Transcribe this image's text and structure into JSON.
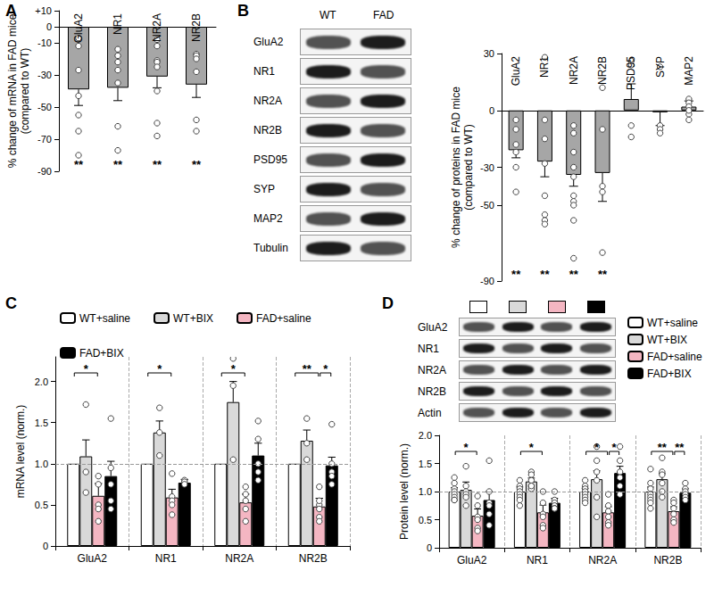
{
  "chart_data": [
    {
      "panel": "A",
      "type": "bar",
      "y_label": "% change of mRNA in FAD mice\n(compared to WT)",
      "categories": [
        "GluA2",
        "NR1",
        "NR2A",
        "NR2B"
      ],
      "values": [
        -39,
        -38,
        -31,
        -36
      ],
      "errors": [
        10,
        8,
        7,
        8
      ],
      "points": [
        [
          -7,
          -12,
          -27,
          -43,
          -55,
          -65,
          -80
        ],
        [
          -14,
          -18,
          -22,
          -27,
          -35,
          -62,
          -77
        ],
        [
          -8,
          -12,
          -21,
          -22,
          -25,
          -40,
          -60,
          -68
        ],
        [
          -17,
          -18,
          -20,
          -28,
          -58,
          -65
        ]
      ],
      "significance": [
        "**",
        "**",
        "**",
        "**"
      ],
      "color": "#a6a6a6",
      "ylim": [
        -90,
        10
      ],
      "yticks": [
        {
          "value": 10,
          "label": "+10"
        },
        0,
        -10,
        -30,
        -50,
        -70,
        -90
      ]
    },
    {
      "panel": "B",
      "type": "bar",
      "y_label": "% change of proteins in FAD mice\n(compared to WT)",
      "categories": [
        "GluA2",
        "NR1",
        "NR2A",
        "NR2B",
        "PSD95",
        "SYP",
        "MAP2"
      ],
      "values": [
        -21,
        -27,
        -34,
        -33,
        6,
        -1,
        2
      ],
      "errors": [
        4,
        8,
        6,
        15,
        8,
        7,
        3
      ],
      "points": [
        [
          -5,
          -10,
          -18,
          -22,
          -30,
          -43
        ],
        [
          28,
          -5,
          -15,
          -28,
          -45,
          -55,
          -58,
          -60
        ],
        [
          -8,
          -12,
          -22,
          -30,
          -35,
          -45,
          -48,
          -50,
          -58,
          -78
        ],
        [
          12,
          -10,
          -40,
          -43,
          -75
        ],
        [
          26,
          24,
          -8,
          -14
        ],
        [
          23,
          -8,
          -10,
          -12
        ],
        [
          6,
          4,
          2,
          -2,
          -5,
          0
        ]
      ],
      "significance": [
        "**",
        "**",
        "**",
        "**",
        null,
        null,
        null
      ],
      "color": "#a6a6a6",
      "ylim": [
        -90,
        30
      ],
      "yticks": [
        30,
        0,
        -30,
        -50,
        -90
      ]
    },
    {
      "panel": "C",
      "type": "bar",
      "y_label": "mRNA level (norm.)",
      "categories": [
        "GluA2",
        "NR1",
        "NR2A",
        "NR2B"
      ],
      "series": [
        {
          "name": "WT+saline",
          "color": "#ffffff",
          "values": [
            1,
            1,
            1,
            1
          ],
          "errors": [
            null,
            null,
            null,
            null
          ],
          "points": [
            [],
            [],
            [],
            []
          ]
        },
        {
          "name": "WT+BIX",
          "color": "#d9d9d9",
          "values": [
            1.09,
            1.38,
            1.75,
            1.28
          ],
          "errors": [
            0.2,
            0.14,
            0.25,
            0.13
          ],
          "points": [
            [
              1.72,
              0.9,
              0.65
            ],
            [
              1.68,
              1.38,
              1.1
            ],
            [
              2.28,
              1.95,
              1.05
            ],
            [
              1.55,
              1.25,
              1.05
            ]
          ]
        },
        {
          "name": "FAD+saline",
          "color": "#f4b6c2",
          "values": [
            0.61,
            0.59,
            0.53,
            0.48
          ],
          "errors": [
            0.15,
            0.1,
            0.1,
            0.1
          ],
          "points": [
            [
              0.85,
              0.75,
              0.5,
              0.45,
              0.3
            ],
            [
              0.88,
              0.6,
              0.55,
              0.5,
              0.38
            ],
            [
              0.72,
              0.63,
              0.55,
              0.45,
              0.3
            ],
            [
              0.72,
              0.5,
              0.45,
              0.35,
              0.3,
              0.55
            ]
          ]
        },
        {
          "name": "FAD+BIX",
          "color": "#000000",
          "values": [
            0.85,
            0.77,
            1.1,
            0.98
          ],
          "errors": [
            0.18,
            0.04,
            0.15,
            0.1
          ],
          "points": [
            [
              1.55,
              0.95,
              0.75,
              0.55,
              0.45
            ],
            [
              0.8,
              0.78,
              0.75
            ],
            [
              1.52,
              1.3,
              1.0,
              0.9,
              0.8
            ],
            [
              1.48,
              1.0,
              0.9,
              0.85,
              0.75
            ]
          ]
        }
      ],
      "comparisons": [
        {
          "category": "GluA2",
          "from": "WT+saline",
          "to": "FAD+saline",
          "label": "*"
        },
        {
          "category": "NR1",
          "from": "WT+saline",
          "to": "FAD+saline",
          "label": "*"
        },
        {
          "category": "NR2A",
          "from": "WT+saline",
          "to": "FAD+saline",
          "label": "*"
        },
        {
          "category": "NR2B",
          "from": "WT+saline",
          "to": "FAD+saline",
          "label": "**"
        },
        {
          "category": "NR2B",
          "from": "FAD+saline",
          "to": "FAD+BIX",
          "label": "*"
        }
      ],
      "reference_line": 1,
      "legend": "top",
      "ylim": [
        0,
        2.3
      ],
      "yticks": [
        0,
        0.5,
        {
          "value": 1,
          "label": "1.0"
        },
        1.5,
        {
          "value": 2,
          "label": "2.0"
        }
      ]
    },
    {
      "panel": "D",
      "type": "bar",
      "y_label": "Protein level (norm.)",
      "categories": [
        "GluA2",
        "NR1",
        "NR2A",
        "NR2B"
      ],
      "series": [
        {
          "name": "WT+saline",
          "color": "#ffffff",
          "values": [
            1.0,
            1.0,
            1.0,
            1.0
          ],
          "errors": [
            0.07,
            0.08,
            0.06,
            0.08
          ],
          "points": [
            [
              1.25,
              1.15,
              1.05,
              1.0,
              0.95,
              0.9,
              0.85,
              0.85
            ],
            [
              1.2,
              1.1,
              1.05,
              1.0,
              0.95,
              0.9,
              0.85,
              0.75
            ],
            [
              1.2,
              1.1,
              1.05,
              1.0,
              0.95,
              0.9,
              0.85,
              0.8
            ],
            [
              1.4,
              1.15,
              1.05,
              0.95,
              0.9,
              0.85,
              0.8,
              0.7
            ]
          ]
        },
        {
          "name": "WT+BIX",
          "color": "#d9d9d9",
          "values": [
            1.03,
            1.18,
            1.22,
            1.22
          ],
          "errors": [
            0.14,
            0.06,
            0.15,
            0.1
          ],
          "points": [
            [
              1.45,
              1.1,
              1.0,
              0.95,
              0.9,
              0.75
            ],
            [
              1.35,
              1.3,
              1.2,
              1.1,
              1.05,
              1.1
            ],
            [
              1.8,
              1.55,
              1.35,
              1.2,
              0.9,
              0.55
            ],
            [
              1.6,
              1.35,
              1.3,
              1.15,
              1.0,
              0.9
            ]
          ]
        },
        {
          "name": "FAD+saline",
          "color": "#f4b6c2",
          "values": [
            0.57,
            0.63,
            0.63,
            0.65
          ],
          "errors": [
            0.12,
            0.13,
            0.1,
            0.08
          ],
          "points": [
            [
              0.92,
              0.75,
              0.55,
              0.5,
              0.35,
              0.3
            ],
            [
              1.0,
              0.8,
              0.6,
              0.55,
              0.4,
              0.35
            ],
            [
              0.95,
              0.75,
              0.65,
              0.55,
              0.45,
              0.4
            ],
            [
              0.85,
              0.8,
              0.7,
              0.6,
              0.5,
              0.45
            ]
          ]
        },
        {
          "name": "FAD+BIX",
          "color": "#000000",
          "values": [
            0.85,
            0.8,
            1.33,
            0.98
          ],
          "errors": [
            0.15,
            0.08,
            0.12,
            0.07
          ],
          "points": [
            [
              1.55,
              1.0,
              0.8,
              0.75,
              0.6,
              0.4
            ],
            [
              1.0,
              0.85,
              0.8,
              0.75,
              0.7,
              0.7
            ],
            [
              1.8,
              1.55,
              1.35,
              1.25,
              1.1,
              0.95
            ],
            [
              1.15,
              1.05,
              1.0,
              0.95,
              0.9,
              0.85
            ]
          ]
        }
      ],
      "comparisons": [
        {
          "category": "GluA2",
          "from": "WT+saline",
          "to": "FAD+saline",
          "label": "*"
        },
        {
          "category": "NR1",
          "from": "WT+saline",
          "to": "FAD+saline",
          "label": "*"
        },
        {
          "category": "NR2A",
          "from": "WT+saline",
          "to": "FAD+saline",
          "label": "*"
        },
        {
          "category": "NR2A",
          "from": "FAD+saline",
          "to": "FAD+BIX",
          "label": "*"
        },
        {
          "category": "NR2B",
          "from": "WT+saline",
          "to": "FAD+saline",
          "label": "**"
        },
        {
          "category": "NR2B",
          "from": "FAD+saline",
          "to": "FAD+BIX",
          "label": "**"
        }
      ],
      "reference_line": 1,
      "legend": "right",
      "ylim": [
        0,
        2
      ],
      "yticks": [
        0,
        0.5,
        {
          "value": 1,
          "label": "1.0"
        },
        1.5,
        {
          "value": 2,
          "label": "2.0"
        }
      ]
    }
  ],
  "blots": [
    {
      "panel": "B",
      "columns": [
        "WT",
        "FAD"
      ],
      "rows": [
        "GluA2",
        "NR1",
        "NR2A",
        "NR2B",
        "PSD95",
        "SYP",
        "MAP2",
        "Tubulin"
      ]
    },
    {
      "panel": "D",
      "rows": [
        "GluA2",
        "NR1",
        "NR2A",
        "NR2B",
        "Actin"
      ]
    }
  ]
}
